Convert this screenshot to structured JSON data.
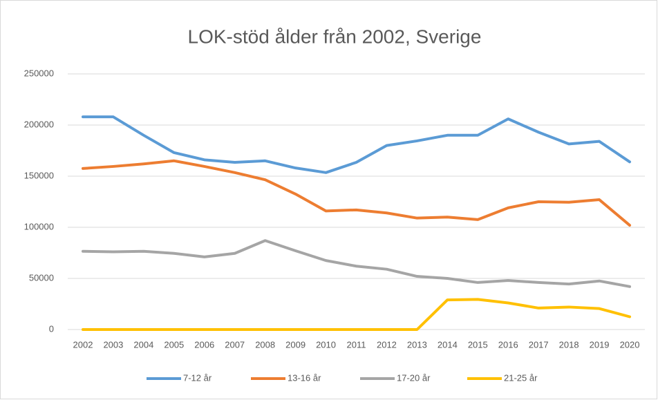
{
  "chart_data": {
    "type": "line",
    "title": "LOK-stöd ålder från 2002, Sverige",
    "categories": [
      "2002",
      "2003",
      "2004",
      "2005",
      "2006",
      "2007",
      "2008",
      "2009",
      "2010",
      "2011",
      "2012",
      "2013",
      "2014",
      "2015",
      "2016",
      "2017",
      "2018",
      "2019",
      "2020"
    ],
    "series": [
      {
        "name": "7-12 år",
        "color": "#5b9bd5",
        "values": [
          208000,
          208000,
          190000,
          173000,
          166000,
          163500,
          165000,
          158000,
          153500,
          163500,
          180000,
          184500,
          190000,
          190000,
          206000,
          193000,
          181500,
          184000,
          164000
        ]
      },
      {
        "name": "13-16 år",
        "color": "#ed7d31",
        "values": [
          157500,
          159500,
          162000,
          165000,
          159500,
          153500,
          146500,
          132500,
          116000,
          117000,
          114000,
          109000,
          110000,
          107500,
          119000,
          125000,
          124500,
          127000,
          102000
        ]
      },
      {
        "name": "17-20 år",
        "color": "#a5a5a5",
        "values": [
          76500,
          76000,
          76500,
          74500,
          71000,
          74500,
          87000,
          77000,
          67500,
          62000,
          59000,
          52000,
          50000,
          46000,
          48000,
          46000,
          44500,
          47500,
          42000
        ]
      },
      {
        "name": "21-25 år",
        "color": "#ffc000",
        "values": [
          0,
          0,
          0,
          0,
          0,
          0,
          0,
          0,
          0,
          0,
          0,
          0,
          29000,
          29500,
          26000,
          21000,
          22000,
          20500,
          12500
        ]
      }
    ],
    "ylim": [
      0,
      250000
    ],
    "yticks": [
      0,
      50000,
      100000,
      150000,
      200000,
      250000
    ],
    "grid": true,
    "legend": "bottom"
  }
}
